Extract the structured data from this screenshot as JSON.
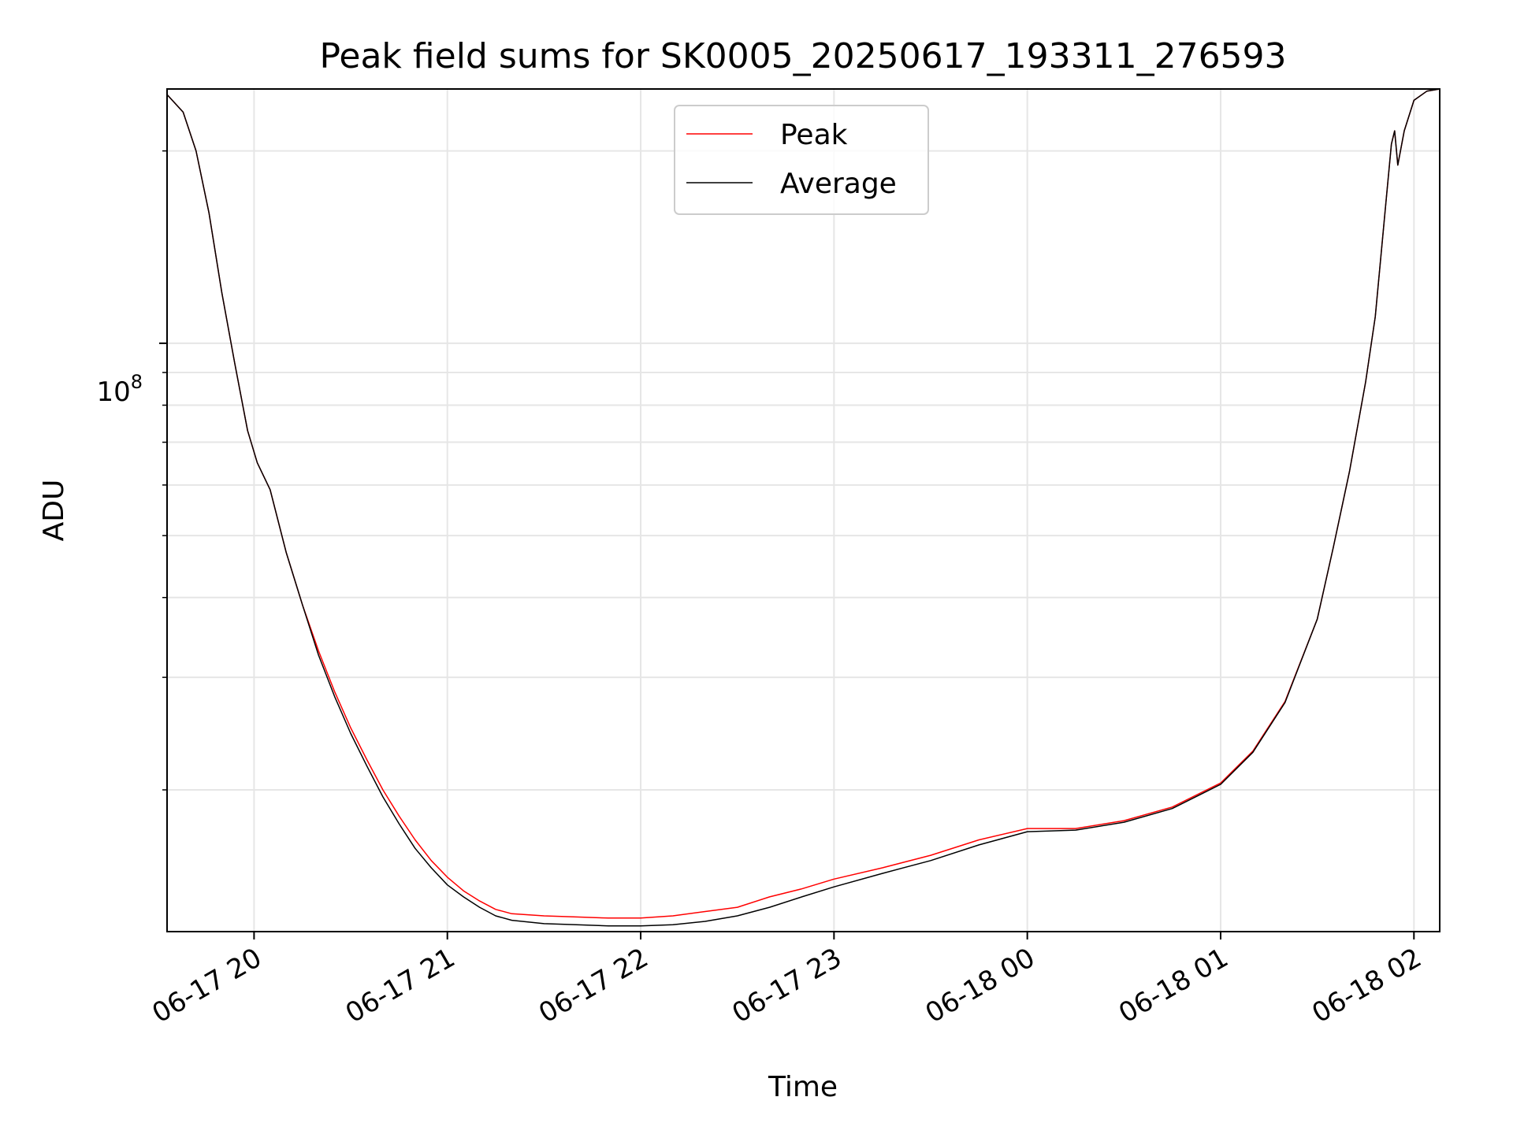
{
  "chart_data": {
    "type": "line",
    "title": "Peak field sums for SK0005_20250617_193311_276593",
    "xlabel": "Time",
    "ylabel": "ADU",
    "xscale": "time",
    "yscale": "log",
    "xlim": [
      "2025-06-17 19:33",
      "2025-06-18 02:08"
    ],
    "ylim": [
      12000000,
      250000000
    ],
    "x_ticks": [
      "06-17 20",
      "06-17 21",
      "06-17 22",
      "06-17 23",
      "06-18 00",
      "06-18 01",
      "06-18 02"
    ],
    "y_tick_label": {
      "base": "10",
      "exponent": "8"
    },
    "y_major_tick": 100000000,
    "y_minor_ticks": [
      20000000,
      30000000,
      40000000,
      50000000,
      60000000,
      70000000,
      80000000,
      90000000,
      200000000
    ],
    "grid": true,
    "legend": {
      "placement": "top-center"
    },
    "series": [
      {
        "name": "Peak",
        "color": "#ff0000",
        "points": [
          [
            "2025-06-17 19:33",
            245000000
          ],
          [
            "2025-06-17 19:38",
            230000000
          ],
          [
            "2025-06-17 19:42",
            200000000
          ],
          [
            "2025-06-17 19:46",
            160000000
          ],
          [
            "2025-06-17 19:50",
            120000000
          ],
          [
            "2025-06-17 19:54",
            93000000
          ],
          [
            "2025-06-17 19:58",
            73000000
          ],
          [
            "2025-06-17 20:01",
            65000000
          ],
          [
            "2025-06-17 20:05",
            59000000
          ],
          [
            "2025-06-17 20:10",
            47000000
          ],
          [
            "2025-06-17 20:15",
            39000000
          ],
          [
            "2025-06-17 20:20",
            33000000
          ],
          [
            "2025-06-17 20:25",
            28500000
          ],
          [
            "2025-06-17 20:30",
            25000000
          ],
          [
            "2025-06-17 20:35",
            22300000
          ],
          [
            "2025-06-17 20:40",
            20000000
          ],
          [
            "2025-06-17 20:45",
            18200000
          ],
          [
            "2025-06-17 20:50",
            16700000
          ],
          [
            "2025-06-17 20:55",
            15500000
          ],
          [
            "2025-06-17 21:00",
            14600000
          ],
          [
            "2025-06-17 21:05",
            13900000
          ],
          [
            "2025-06-17 21:10",
            13400000
          ],
          [
            "2025-06-17 21:15",
            13000000
          ],
          [
            "2025-06-17 21:20",
            12800000
          ],
          [
            "2025-06-17 21:30",
            12700000
          ],
          [
            "2025-06-17 21:40",
            12650000
          ],
          [
            "2025-06-17 21:50",
            12600000
          ],
          [
            "2025-06-17 22:00",
            12600000
          ],
          [
            "2025-06-17 22:10",
            12700000
          ],
          [
            "2025-06-17 22:20",
            12900000
          ],
          [
            "2025-06-17 22:30",
            13100000
          ],
          [
            "2025-06-17 22:40",
            13600000
          ],
          [
            "2025-06-17 22:50",
            14000000
          ],
          [
            "2025-06-17 23:00",
            14500000
          ],
          [
            "2025-06-17 23:15",
            15100000
          ],
          [
            "2025-06-17 23:30",
            15800000
          ],
          [
            "2025-06-17 23:45",
            16700000
          ],
          [
            "2025-06-18 00:00",
            17400000
          ],
          [
            "2025-06-18 00:15",
            17400000
          ],
          [
            "2025-06-18 00:30",
            17900000
          ],
          [
            "2025-06-18 00:45",
            18800000
          ],
          [
            "2025-06-18 01:00",
            20500000
          ],
          [
            "2025-06-18 01:10",
            23000000
          ],
          [
            "2025-06-18 01:20",
            27500000
          ],
          [
            "2025-06-18 01:30",
            37000000
          ],
          [
            "2025-06-18 01:35",
            48000000
          ],
          [
            "2025-06-18 01:40",
            63000000
          ],
          [
            "2025-06-18 01:45",
            87000000
          ],
          [
            "2025-06-18 01:48",
            110000000
          ],
          [
            "2025-06-18 01:51",
            160000000
          ],
          [
            "2025-06-18 01:53",
            205000000
          ],
          [
            "2025-06-18 01:54",
            215000000
          ],
          [
            "2025-06-18 01:55",
            190000000
          ],
          [
            "2025-06-18 01:57",
            215000000
          ],
          [
            "2025-06-18 02:00",
            240000000
          ],
          [
            "2025-06-18 02:04",
            248000000
          ],
          [
            "2025-06-18 02:08",
            250000000
          ]
        ]
      },
      {
        "name": "Average",
        "color": "#000000",
        "points": [
          [
            "2025-06-17 19:33",
            245000000
          ],
          [
            "2025-06-17 19:38",
            230000000
          ],
          [
            "2025-06-17 19:42",
            200000000
          ],
          [
            "2025-06-17 19:46",
            160000000
          ],
          [
            "2025-06-17 19:50",
            120000000
          ],
          [
            "2025-06-17 19:54",
            93000000
          ],
          [
            "2025-06-17 19:58",
            73000000
          ],
          [
            "2025-06-17 20:01",
            65000000
          ],
          [
            "2025-06-17 20:05",
            59000000
          ],
          [
            "2025-06-17 20:10",
            47000000
          ],
          [
            "2025-06-17 20:15",
            39000000
          ],
          [
            "2025-06-17 20:20",
            32500000
          ],
          [
            "2025-06-17 20:25",
            28000000
          ],
          [
            "2025-06-17 20:30",
            24500000
          ],
          [
            "2025-06-17 20:35",
            21800000
          ],
          [
            "2025-06-17 20:40",
            19500000
          ],
          [
            "2025-06-17 20:45",
            17700000
          ],
          [
            "2025-06-17 20:50",
            16200000
          ],
          [
            "2025-06-17 20:55",
            15100000
          ],
          [
            "2025-06-17 21:00",
            14200000
          ],
          [
            "2025-06-17 21:05",
            13600000
          ],
          [
            "2025-06-17 21:10",
            13100000
          ],
          [
            "2025-06-17 21:15",
            12700000
          ],
          [
            "2025-06-17 21:20",
            12500000
          ],
          [
            "2025-06-17 21:30",
            12350000
          ],
          [
            "2025-06-17 21:40",
            12300000
          ],
          [
            "2025-06-17 21:50",
            12250000
          ],
          [
            "2025-06-17 22:00",
            12250000
          ],
          [
            "2025-06-17 22:10",
            12300000
          ],
          [
            "2025-06-17 22:20",
            12450000
          ],
          [
            "2025-06-17 22:30",
            12700000
          ],
          [
            "2025-06-17 22:40",
            13100000
          ],
          [
            "2025-06-17 22:50",
            13600000
          ],
          [
            "2025-06-17 23:00",
            14100000
          ],
          [
            "2025-06-17 23:15",
            14800000
          ],
          [
            "2025-06-17 23:30",
            15500000
          ],
          [
            "2025-06-17 23:45",
            16400000
          ],
          [
            "2025-06-18 00:00",
            17200000
          ],
          [
            "2025-06-18 00:15",
            17300000
          ],
          [
            "2025-06-18 00:30",
            17800000
          ],
          [
            "2025-06-18 00:45",
            18700000
          ],
          [
            "2025-06-18 01:00",
            20400000
          ],
          [
            "2025-06-18 01:10",
            22900000
          ],
          [
            "2025-06-18 01:20",
            27400000
          ],
          [
            "2025-06-18 01:30",
            37000000
          ],
          [
            "2025-06-18 01:35",
            48000000
          ],
          [
            "2025-06-18 01:40",
            63000000
          ],
          [
            "2025-06-18 01:45",
            87000000
          ],
          [
            "2025-06-18 01:48",
            110000000
          ],
          [
            "2025-06-18 01:51",
            160000000
          ],
          [
            "2025-06-18 01:53",
            205000000
          ],
          [
            "2025-06-18 01:54",
            215000000
          ],
          [
            "2025-06-18 01:55",
            190000000
          ],
          [
            "2025-06-18 01:57",
            215000000
          ],
          [
            "2025-06-18 02:00",
            240000000
          ],
          [
            "2025-06-18 02:04",
            248000000
          ],
          [
            "2025-06-18 02:08",
            250000000
          ]
        ]
      }
    ]
  }
}
